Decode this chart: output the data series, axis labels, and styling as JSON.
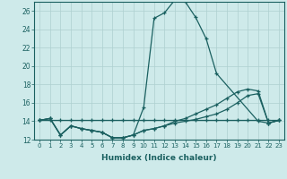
{
  "xlabel": "Humidex (Indice chaleur)",
  "background_color": "#ceeaea",
  "grid_color": "#aed0d0",
  "line_color": "#1a6060",
  "xlim": [
    -0.5,
    23.5
  ],
  "ylim": [
    12,
    27
  ],
  "xticks": [
    0,
    1,
    2,
    3,
    4,
    5,
    6,
    7,
    8,
    9,
    10,
    11,
    12,
    13,
    14,
    15,
    16,
    17,
    18,
    19,
    20,
    21,
    22,
    23
  ],
  "yticks": [
    12,
    14,
    16,
    18,
    20,
    22,
    24,
    26
  ],
  "lines": [
    {
      "x": [
        0,
        1,
        2,
        3,
        4,
        5,
        6,
        7,
        8,
        9,
        10,
        11,
        12,
        13,
        14,
        15,
        16,
        17,
        21,
        22,
        23
      ],
      "y": [
        14.1,
        14.3,
        12.5,
        13.5,
        13.2,
        13.0,
        12.8,
        12.2,
        12.2,
        12.5,
        15.5,
        25.2,
        25.8,
        27.2,
        27.0,
        25.3,
        23.0,
        19.2,
        14.0,
        13.8,
        14.1
      ]
    },
    {
      "x": [
        0,
        1,
        2,
        3,
        4,
        5,
        6,
        7,
        8,
        9,
        10,
        11,
        12,
        13,
        14,
        15,
        16,
        17,
        18,
        19,
        20,
        21,
        22,
        23
      ],
      "y": [
        14.1,
        14.3,
        12.5,
        13.5,
        13.2,
        13.0,
        12.8,
        12.2,
        12.2,
        12.5,
        13.0,
        13.2,
        13.5,
        14.0,
        14.3,
        14.8,
        15.3,
        15.8,
        16.5,
        17.2,
        17.5,
        17.3,
        13.8,
        14.1
      ]
    },
    {
      "x": [
        0,
        1,
        2,
        3,
        4,
        5,
        6,
        7,
        8,
        9,
        10,
        11,
        12,
        13,
        14,
        15,
        16,
        17,
        18,
        19,
        20,
        21,
        22,
        23
      ],
      "y": [
        14.1,
        14.3,
        12.5,
        13.5,
        13.2,
        13.0,
        12.8,
        12.2,
        12.2,
        12.5,
        13.0,
        13.2,
        13.5,
        13.8,
        14.0,
        14.2,
        14.5,
        14.8,
        15.3,
        16.0,
        16.8,
        17.0,
        13.8,
        14.1
      ]
    },
    {
      "x": [
        0,
        1,
        2,
        3,
        4,
        5,
        6,
        7,
        8,
        9,
        10,
        11,
        12,
        13,
        14,
        15,
        16,
        17,
        18,
        19,
        20,
        21,
        22,
        23
      ],
      "y": [
        14.1,
        14.1,
        14.1,
        14.1,
        14.1,
        14.1,
        14.1,
        14.1,
        14.1,
        14.1,
        14.1,
        14.1,
        14.1,
        14.1,
        14.1,
        14.1,
        14.1,
        14.1,
        14.1,
        14.1,
        14.1,
        14.1,
        14.1,
        14.1
      ]
    }
  ]
}
